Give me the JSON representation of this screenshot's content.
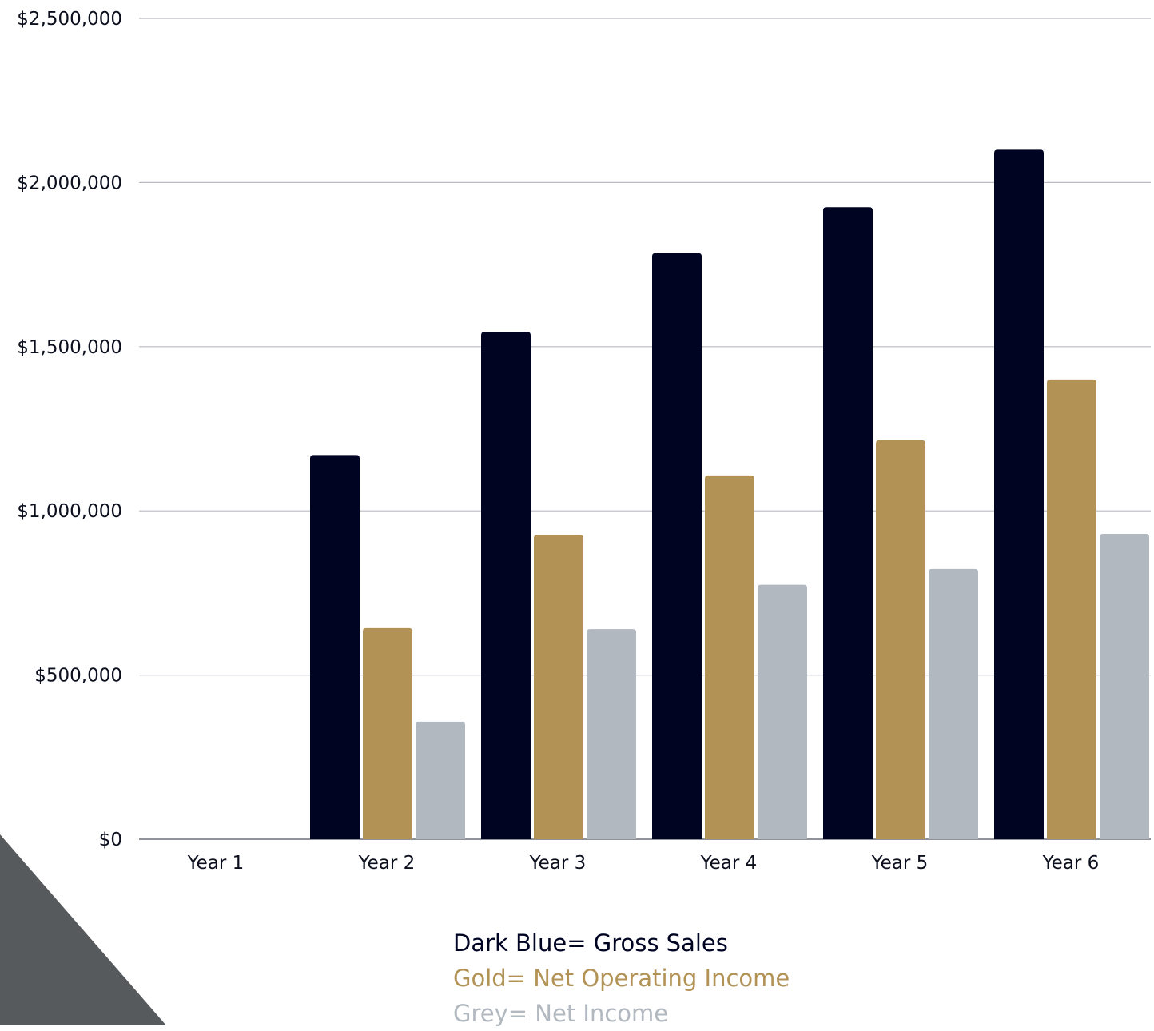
{
  "chart_data": {
    "type": "bar",
    "categories": [
      "Year 1",
      "Year 2",
      "Year 3",
      "Year 4",
      "Year 5",
      "Year 6"
    ],
    "series": [
      {
        "color": "#000423",
        "values": [
          0,
          1170000,
          1545000,
          1785000,
          1925000,
          2100000
        ]
      },
      {
        "color": "#b39355",
        "values": [
          0,
          643000,
          927000,
          1108000,
          1215000,
          1400000
        ]
      },
      {
        "color": "#b2b8bf",
        "values": [
          0,
          358000,
          640000,
          775000,
          823000,
          930000
        ]
      }
    ],
    "ylim": [
      0,
      2500000
    ],
    "yticks": [
      0,
      500000,
      1000000,
      1500000,
      2000000,
      2500000
    ],
    "ytick_labels": [
      "$0",
      "$500,000",
      "$1,000,000",
      "$1,500,000",
      "$2,000,000",
      "$2,500,000"
    ],
    "grid": true,
    "title": "",
    "xlabel": "",
    "ylabel": "",
    "legend": {
      "placement": "bottom-center",
      "entries": [
        {
          "text": "Dark Blue= Gross Sales",
          "color": "#000423"
        },
        {
          "text": "Gold= Net Operating Income",
          "color": "#b39355"
        },
        {
          "text": "Grey= Net Income",
          "color": "#b2b8bf"
        }
      ]
    }
  },
  "decoration": {
    "corner_triangle_color": "#575a5c"
  }
}
